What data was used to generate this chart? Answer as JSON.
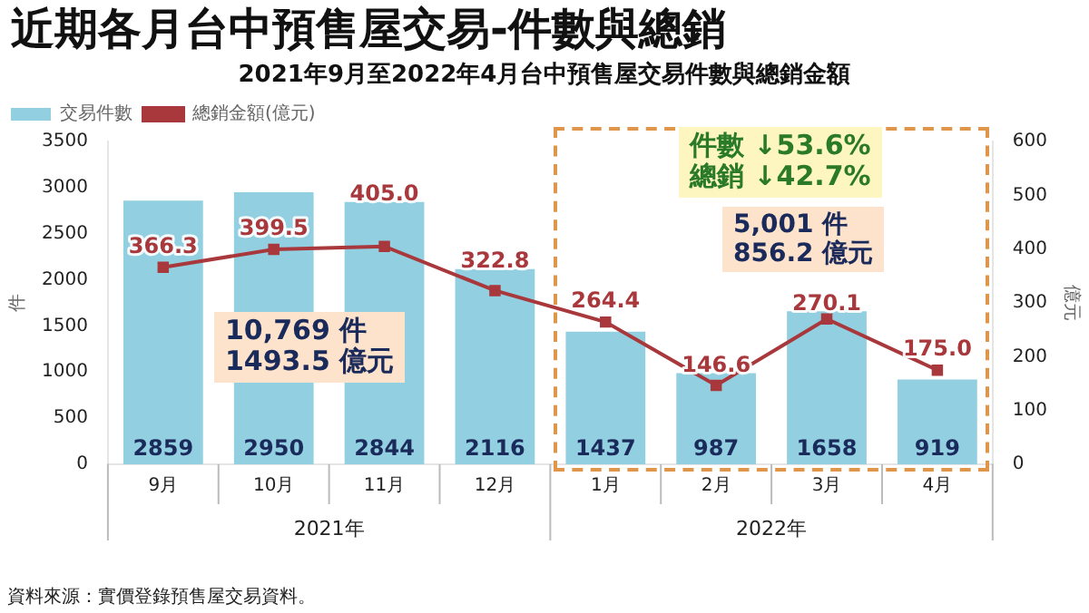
{
  "chart_data": {
    "type": "bar",
    "title": "近期各月台中預售屋交易-件數與總銷",
    "subtitle": "2021年9月至2022年4月台中預售屋交易件數與總銷金額",
    "categories": [
      "9月",
      "10月",
      "11月",
      "12月",
      "1月",
      "2月",
      "3月",
      "4月"
    ],
    "series": [
      {
        "name": "交易件數",
        "color": "#92cfe0",
        "values": [
          2859,
          2950,
          2844,
          2116,
          1437,
          987,
          1658,
          919
        ]
      },
      {
        "name": "總銷金額(億元)",
        "type": "line",
        "axis": "y2",
        "color": "#a8383c",
        "marker": "square",
        "values": [
          366.3,
          399.5,
          405.0,
          322.8,
          264.4,
          146.6,
          270.1,
          175.0
        ],
        "value_labels": [
          "366.3",
          "399.5",
          "405.0",
          "322.8",
          "264.4",
          "146.6",
          "270.1",
          "175.0"
        ]
      }
    ],
    "ylabel": "件",
    "y2label": "億元",
    "ylim": [
      0,
      3500
    ],
    "yticks": [
      0,
      500,
      1000,
      1500,
      2000,
      2500,
      3000,
      3500
    ],
    "y2lim": [
      0,
      600
    ],
    "y2ticks": [
      0,
      100,
      200,
      300,
      400,
      500,
      600
    ],
    "data_labels": true,
    "legend": "top left",
    "grid": false,
    "annotations": [
      "10,769 件",
      "1493.5 億元",
      "件數 ↓53.6%",
      "總銷 ↓42.7%",
      "5,001 件",
      "856.2 億元",
      "2021年",
      "2022年",
      "資料來源：實價登錄預售屋交易資料。"
    ]
  }
}
